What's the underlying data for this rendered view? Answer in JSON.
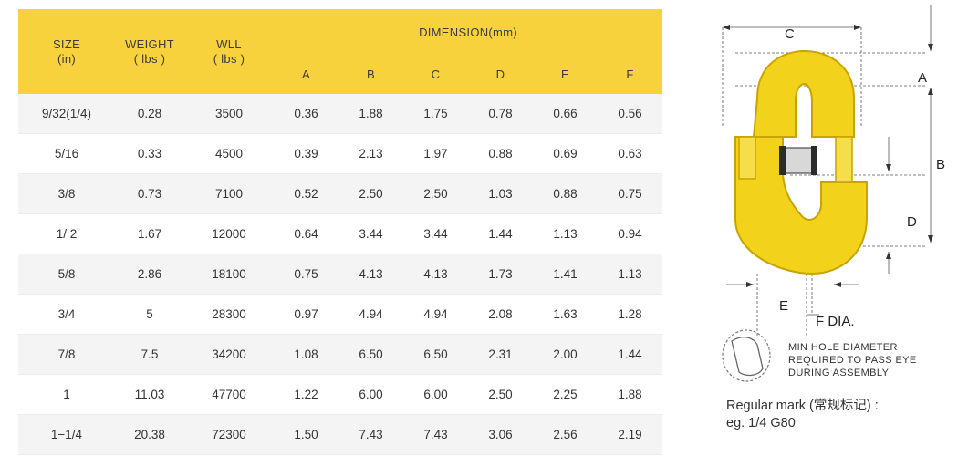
{
  "table": {
    "headers": {
      "size": {
        "label": "SIZE",
        "unit": "(in)"
      },
      "weight": {
        "label": "WEIGHT",
        "unit": "( lbs )"
      },
      "wll": {
        "label": "WLL",
        "unit": "( lbs )"
      },
      "dimension": "DIMENSION(mm)",
      "dimension_columns": [
        "A",
        "B",
        "C",
        "D",
        "E",
        "F"
      ]
    },
    "rows": [
      {
        "size": "9/32(1/4)",
        "weight": "0.28",
        "wll": "3500",
        "a": "0.36",
        "b": "1.88",
        "c": "1.75",
        "d": "0.78",
        "e": "0.66",
        "f": "0.56"
      },
      {
        "size": "5/16",
        "weight": "0.33",
        "wll": "4500",
        "a": "0.39",
        "b": "2.13",
        "c": "1.97",
        "d": "0.88",
        "e": "0.69",
        "f": "0.63"
      },
      {
        "size": "3/8",
        "weight": "0.73",
        "wll": "7100",
        "a": "0.52",
        "b": "2.50",
        "c": "2.50",
        "d": "1.03",
        "e": "0.88",
        "f": "0.75"
      },
      {
        "size": "1/ 2",
        "weight": "1.67",
        "wll": "12000",
        "a": "0.64",
        "b": "3.44",
        "c": "3.44",
        "d": "1.44",
        "e": "1.13",
        "f": "0.94"
      },
      {
        "size": "5/8",
        "weight": "2.86",
        "wll": "18100",
        "a": "0.75",
        "b": "4.13",
        "c": "4.13",
        "d": "1.73",
        "e": "1.41",
        "f": "1.13"
      },
      {
        "size": "3/4",
        "weight": "5",
        "wll": "28300",
        "a": "0.97",
        "b": "4.94",
        "c": "4.94",
        "d": "2.08",
        "e": "1.63",
        "f": "1.28"
      },
      {
        "size": "7/8",
        "weight": "7.5",
        "wll": "34200",
        "a": "1.08",
        "b": "6.50",
        "c": "6.50",
        "d": "2.31",
        "e": "2.00",
        "f": "1.44"
      },
      {
        "size": "1",
        "weight": "11.03",
        "wll": "47700",
        "a": "1.22",
        "b": "6.00",
        "c": "6.00",
        "d": "2.50",
        "e": "2.25",
        "f": "1.88"
      },
      {
        "size": "1−1/4",
        "weight": "20.38",
        "wll": "72300",
        "a": "1.50",
        "b": "7.43",
        "c": "7.43",
        "d": "3.06",
        "e": "2.56",
        "f": "2.19"
      }
    ]
  },
  "diagram": {
    "labels": {
      "c": "C",
      "a": "A",
      "b": "B",
      "d": "D",
      "e": "E",
      "f_dia": "F DIA."
    },
    "note_lines": [
      "MIN HOLE DIAMETER",
      "REQUIRED TO PASS EYE",
      "DURING ASSEMBLY"
    ],
    "regular_mark": "Regular mark (常规标记) :",
    "example": "eg. 1/4 G80",
    "colors": {
      "link_fill": "#f2d21a",
      "link_stroke": "#c9a400",
      "pin": "#2b2b2b"
    }
  }
}
